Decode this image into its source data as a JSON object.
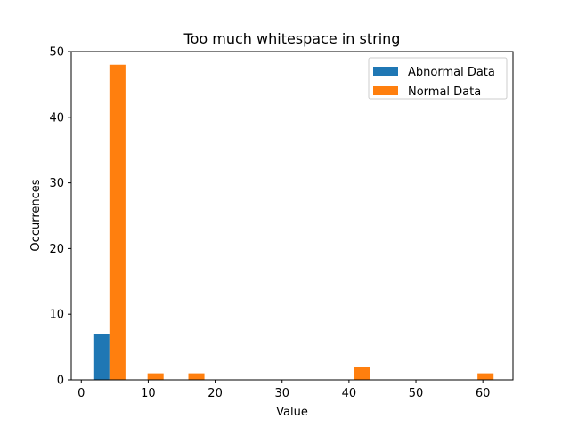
{
  "chart_data": {
    "type": "bar",
    "title": "Too much whitespace in string",
    "xlabel": "Value",
    "ylabel": "Occurrences",
    "xlim": [
      -1.5,
      64.5
    ],
    "ylim": [
      0,
      50
    ],
    "xticks": [
      0,
      10,
      20,
      30,
      40,
      50,
      60
    ],
    "yticks": [
      0,
      10,
      20,
      30,
      40,
      50
    ],
    "grid": false,
    "legend_position": "top-right",
    "bin_width": 2.4,
    "series": [
      {
        "name": "Abnormal Data",
        "color": "#1f77b4",
        "bars": [
          {
            "x": 3.0,
            "value": 7
          }
        ]
      },
      {
        "name": "Normal Data",
        "color": "#ff7f0e",
        "bars": [
          {
            "x": 5.4,
            "value": 48
          },
          {
            "x": 11.1,
            "value": 1
          },
          {
            "x": 17.2,
            "value": 1
          },
          {
            "x": 41.9,
            "value": 2
          },
          {
            "x": 60.4,
            "value": 1
          }
        ]
      }
    ]
  }
}
